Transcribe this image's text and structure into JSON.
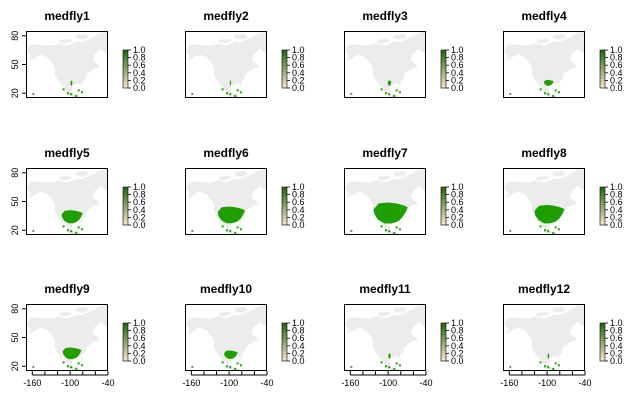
{
  "chart_data": {
    "type": "heatmap",
    "grid": "off",
    "panels": [
      {
        "title": "medfly1",
        "suitability_extent": 0.06
      },
      {
        "title": "medfly2",
        "suitability_extent": 0.04
      },
      {
        "title": "medfly3",
        "suitability_extent": 0.1
      },
      {
        "title": "medfly4",
        "suitability_extent": 0.28
      },
      {
        "title": "medfly5",
        "suitability_extent": 0.62
      },
      {
        "title": "medfly6",
        "suitability_extent": 0.8
      },
      {
        "title": "medfly7",
        "suitability_extent": 1.0
      },
      {
        "title": "medfly8",
        "suitability_extent": 0.88
      },
      {
        "title": "medfly9",
        "suitability_extent": 0.55
      },
      {
        "title": "medfly10",
        "suitability_extent": 0.4
      },
      {
        "title": "medfly11",
        "suitability_extent": 0.07
      },
      {
        "title": "medfly12",
        "suitability_extent": 0.05
      }
    ],
    "x_ticks": [
      "-160",
      "-100",
      "-40"
    ],
    "y_ticks": [
      "20",
      "50",
      "80"
    ],
    "xlim": [
      -170,
      -40
    ],
    "ylim": [
      15,
      85
    ],
    "legend": {
      "placement": "right",
      "ticks": [
        "1.0",
        "0.8",
        "0.6",
        "0.4",
        "0.2",
        "0.0"
      ]
    },
    "colors": {
      "presence": "#1f9e00",
      "background": "#ececec",
      "legend_top": "#2b6b12",
      "legend_bottom": "#f2dcc6"
    }
  }
}
